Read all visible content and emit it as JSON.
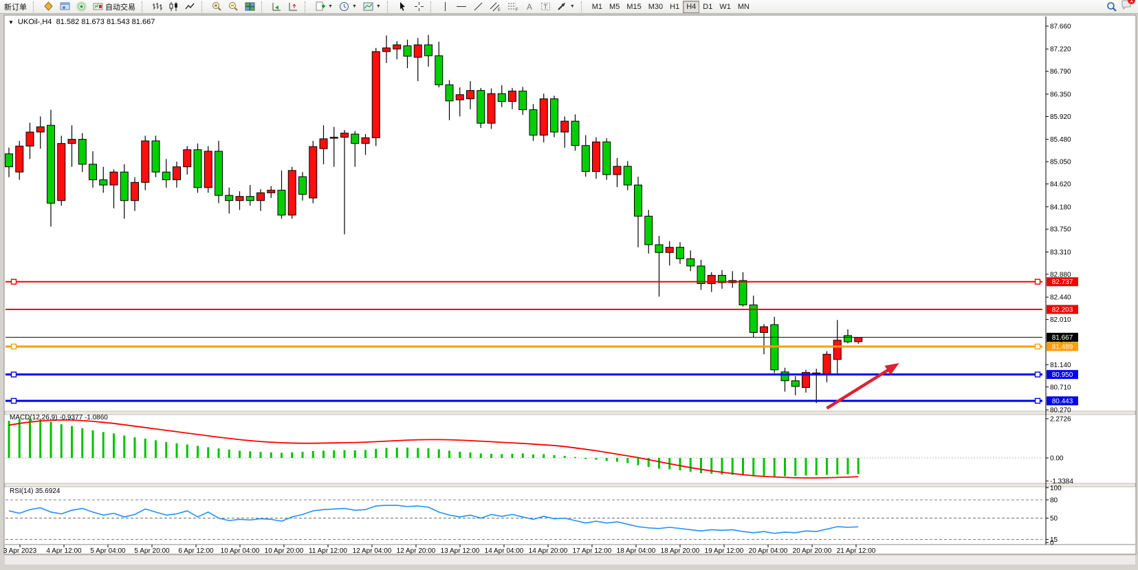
{
  "toolbar": {
    "new_order_label": "新订单",
    "autotrade_label": "自动交易",
    "timeframes": [
      "M1",
      "M5",
      "M15",
      "M30",
      "H1",
      "H4",
      "D1",
      "W1",
      "MN"
    ],
    "active_timeframe": "H4",
    "notification_count": "1"
  },
  "window": {
    "collapse_arrow": "▼",
    "title_symbol": "UKOil-,H4",
    "title_ohlc": "81.582 81.673 81.543 81.667"
  },
  "chart_data": {
    "type": "candlestick",
    "symbol": "UKOil-",
    "timeframe": "H4",
    "current_bar": {
      "open": 81.582,
      "high": 81.673,
      "low": 81.543,
      "close": 81.667
    },
    "bull_color": "#ff0e0e",
    "bear_color": "#00cf00",
    "price_axis_ticks": [
      "87.660",
      "87.220",
      "86.790",
      "86.350",
      "85.920",
      "85.480",
      "85.050",
      "84.620",
      "84.180",
      "83.750",
      "83.310",
      "82.880",
      "82.440",
      "82.010",
      "81.570",
      "81.140",
      "80.710",
      "80.270"
    ],
    "time_labels": [
      "3 Apr 2023",
      "4 Apr 12:00",
      "5 Apr 04:00",
      "5 Apr 20:00",
      "6 Apr 12:00",
      "10 Apr 04:00",
      "10 Apr 20:00",
      "11 Apr 12:00",
      "12 Apr 04:00",
      "12 Apr 20:00",
      "13 Apr 12:00",
      "14 Apr 04:00",
      "14 Apr 20:00",
      "17 Apr 12:00",
      "18 Apr 04:00",
      "18 Apr 20:00",
      "19 Apr 12:00",
      "20 Apr 04:00",
      "20 Apr 20:00",
      "21 Apr 12:00"
    ],
    "candles": [
      [
        85.2,
        85.32,
        84.75,
        84.95
      ],
      [
        84.85,
        85.45,
        84.7,
        85.35
      ],
      [
        85.35,
        85.8,
        85.1,
        85.62
      ],
      [
        85.62,
        85.92,
        85.3,
        85.72
      ],
      [
        85.75,
        86.05,
        83.8,
        84.25
      ],
      [
        84.3,
        85.55,
        84.2,
        85.4
      ],
      [
        85.4,
        85.75,
        84.95,
        85.48
      ],
      [
        85.48,
        85.6,
        84.85,
        85.0
      ],
      [
        85.0,
        85.25,
        84.55,
        84.7
      ],
      [
        84.7,
        84.95,
        84.45,
        84.6
      ],
      [
        84.6,
        84.9,
        84.15,
        84.85
      ],
      [
        84.85,
        85.0,
        83.95,
        84.3
      ],
      [
        84.3,
        84.75,
        84.1,
        84.65
      ],
      [
        84.65,
        85.55,
        84.5,
        85.45
      ],
      [
        85.45,
        85.55,
        84.75,
        84.85
      ],
      [
        84.85,
        85.1,
        84.55,
        84.7
      ],
      [
        84.7,
        85.05,
        84.55,
        84.95
      ],
      [
        84.95,
        85.35,
        84.8,
        85.28
      ],
      [
        85.28,
        85.4,
        84.45,
        84.55
      ],
      [
        84.55,
        85.35,
        84.45,
        85.25
      ],
      [
        85.25,
        85.45,
        84.25,
        84.4
      ],
      [
        84.4,
        84.55,
        84.05,
        84.3
      ],
      [
        84.3,
        84.48,
        84.12,
        84.38
      ],
      [
        84.38,
        84.6,
        84.2,
        84.3
      ],
      [
        84.3,
        84.52,
        84.1,
        84.45
      ],
      [
        84.45,
        84.58,
        84.35,
        84.5
      ],
      [
        84.5,
        84.88,
        83.95,
        84.02
      ],
      [
        84.02,
        84.95,
        83.95,
        84.88
      ],
      [
        84.76,
        84.85,
        84.3,
        84.42
      ],
      [
        84.35,
        85.45,
        84.25,
        85.34
      ],
      [
        85.3,
        85.75,
        85.0,
        85.49
      ],
      [
        85.5,
        85.72,
        84.95,
        85.52
      ],
      [
        85.52,
        85.66,
        83.65,
        85.6
      ],
      [
        85.58,
        85.64,
        84.95,
        85.4
      ],
      [
        85.4,
        85.58,
        85.18,
        85.51
      ],
      [
        85.51,
        87.24,
        85.35,
        87.17
      ],
      [
        87.17,
        87.48,
        86.95,
        87.24
      ],
      [
        87.22,
        87.37,
        87.02,
        87.3
      ],
      [
        87.28,
        87.4,
        86.85,
        87.08
      ],
      [
        87.06,
        87.43,
        86.6,
        87.3
      ],
      [
        87.3,
        87.49,
        86.88,
        87.09
      ],
      [
        87.09,
        87.36,
        86.48,
        86.53
      ],
      [
        86.53,
        86.62,
        85.85,
        86.22
      ],
      [
        86.24,
        86.48,
        85.92,
        86.34
      ],
      [
        86.26,
        86.6,
        86.06,
        86.42
      ],
      [
        86.42,
        86.47,
        85.7,
        85.79
      ],
      [
        85.79,
        86.46,
        85.68,
        86.36
      ],
      [
        86.36,
        86.52,
        86.1,
        86.21
      ],
      [
        86.21,
        86.47,
        86.06,
        86.41
      ],
      [
        86.41,
        86.49,
        85.95,
        86.05
      ],
      [
        86.05,
        86.16,
        85.45,
        85.56
      ],
      [
        85.56,
        86.36,
        85.42,
        86.26
      ],
      [
        86.26,
        86.32,
        85.52,
        85.62
      ],
      [
        85.62,
        85.92,
        85.32,
        85.83
      ],
      [
        85.83,
        85.96,
        85.26,
        85.36
      ],
      [
        85.36,
        85.56,
        84.76,
        84.86
      ],
      [
        84.86,
        85.52,
        84.72,
        85.43
      ],
      [
        85.43,
        85.5,
        84.7,
        84.8
      ],
      [
        84.8,
        85.12,
        84.56,
        84.96
      ],
      [
        84.96,
        85.06,
        84.5,
        84.6
      ],
      [
        84.6,
        84.76,
        83.4,
        84.0
      ],
      [
        84.0,
        84.12,
        83.28,
        83.45
      ],
      [
        83.45,
        83.62,
        82.45,
        83.3
      ],
      [
        83.3,
        83.52,
        83.05,
        83.4
      ],
      [
        83.4,
        83.5,
        83.08,
        83.18
      ],
      [
        83.18,
        83.34,
        82.94,
        83.04
      ],
      [
        83.04,
        83.16,
        82.58,
        82.7
      ],
      [
        82.7,
        82.92,
        82.54,
        82.86
      ],
      [
        82.86,
        82.96,
        82.6,
        82.72
      ],
      [
        82.72,
        82.94,
        82.62,
        82.76
      ],
      [
        82.76,
        82.92,
        82.26,
        82.29
      ],
      [
        82.29,
        82.47,
        81.67,
        81.76
      ],
      [
        81.76,
        81.92,
        81.34,
        81.87
      ],
      [
        81.91,
        82.06,
        80.98,
        81.04
      ],
      [
        81.0,
        81.08,
        80.62,
        80.83
      ],
      [
        80.83,
        80.92,
        80.55,
        80.72
      ],
      [
        80.7,
        81.04,
        80.6,
        80.99
      ],
      [
        80.98,
        81.06,
        80.4,
        80.97
      ],
      [
        80.94,
        81.4,
        80.8,
        81.34
      ],
      [
        81.24,
        82.0,
        80.97,
        81.61
      ],
      [
        81.7,
        81.82,
        81.55,
        81.58
      ],
      [
        81.582,
        81.673,
        81.543,
        81.667
      ]
    ],
    "hlines": [
      {
        "value": 82.737,
        "label": "82.737",
        "color": "#f20000",
        "width": 2,
        "handles": true
      },
      {
        "value": 82.203,
        "label": "82.203",
        "color": "#f20000",
        "width": 2,
        "handles": false
      },
      {
        "value": 81.489,
        "label": "81.489",
        "color": "#ff9d00",
        "width": 3,
        "handles": true
      },
      {
        "value": 80.95,
        "label": "80.950",
        "color": "#0000f0",
        "width": 3,
        "handles": true
      },
      {
        "value": 80.443,
        "label": "80.443",
        "color": "#0000f0",
        "width": 3,
        "handles": true
      }
    ],
    "bid": {
      "value": 81.667,
      "label": "81.667",
      "color": "#000000"
    },
    "arrow": {
      "from_bar": 78.0,
      "from_price": 80.3,
      "to_bar": 84.9,
      "to_price": 81.17,
      "color": "#dd2233"
    },
    "macd": {
      "label": "MACD(12,26,9) -0.9377 -1.0860",
      "main_value": -0.9377,
      "signal_value": -1.086,
      "hist_color": "#00c400",
      "signal_color": "#ff0000",
      "axis_labels": [
        "2.2726",
        "0.00",
        "-1.3384"
      ],
      "hist": [
        2.15,
        2.24,
        2.27,
        2.22,
        2.1,
        1.95,
        1.85,
        1.72,
        1.6,
        1.5,
        1.42,
        1.3,
        1.2,
        1.12,
        1.02,
        0.92,
        0.85,
        0.78,
        0.7,
        0.62,
        0.55,
        0.48,
        0.42,
        0.38,
        0.35,
        0.32,
        0.3,
        0.32,
        0.35,
        0.4,
        0.42,
        0.44,
        0.45,
        0.44,
        0.46,
        0.52,
        0.58,
        0.6,
        0.6,
        0.58,
        0.56,
        0.5,
        0.42,
        0.36,
        0.32,
        0.26,
        0.24,
        0.22,
        0.24,
        0.26,
        0.2,
        0.22,
        0.16,
        0.12,
        0.05,
        -0.06,
        -0.1,
        -0.18,
        -0.22,
        -0.3,
        -0.42,
        -0.52,
        -0.62,
        -0.66,
        -0.72,
        -0.8,
        -0.88,
        -0.92,
        -0.96,
        -0.98,
        -1.02,
        -1.06,
        -1.05,
        -1.08,
        -1.06,
        -1.05,
        -1.02,
        -1.0,
        -0.98,
        -0.96,
        -0.95,
        -0.94
      ],
      "signal": [
        1.9,
        2.0,
        2.08,
        2.14,
        2.18,
        2.2,
        2.19,
        2.16,
        2.12,
        2.06,
        2.0,
        1.92,
        1.84,
        1.76,
        1.68,
        1.6,
        1.52,
        1.44,
        1.36,
        1.28,
        1.2,
        1.13,
        1.06,
        1.0,
        0.95,
        0.91,
        0.88,
        0.86,
        0.85,
        0.85,
        0.86,
        0.87,
        0.88,
        0.89,
        0.91,
        0.94,
        0.97,
        1.0,
        1.03,
        1.05,
        1.06,
        1.06,
        1.05,
        1.03,
        1.0,
        0.97,
        0.94,
        0.9,
        0.87,
        0.84,
        0.8,
        0.76,
        0.72,
        0.66,
        0.58,
        0.5,
        0.42,
        0.32,
        0.22,
        0.12,
        0.02,
        -0.1,
        -0.22,
        -0.34,
        -0.45,
        -0.56,
        -0.66,
        -0.75,
        -0.83,
        -0.9,
        -0.97,
        -1.03,
        -1.07,
        -1.1,
        -1.13,
        -1.15,
        -1.16,
        -1.16,
        -1.15,
        -1.13,
        -1.11,
        -1.086
      ]
    },
    "rsi": {
      "label": "RSI(14) 35.6924",
      "value": 35.6924,
      "color": "#1e90ff",
      "levels": [
        80,
        50,
        15
      ],
      "axis_labels": [
        "100",
        "80",
        "50",
        "15",
        "0"
      ],
      "values": [
        62,
        58,
        64,
        67,
        60,
        57,
        63,
        66,
        60,
        55,
        58,
        52,
        56,
        65,
        60,
        55,
        57,
        62,
        52,
        60,
        50,
        46,
        48,
        47,
        49,
        48,
        45,
        52,
        56,
        62,
        64,
        65,
        66,
        63,
        64,
        70,
        71,
        71,
        69,
        70,
        68,
        60,
        55,
        52,
        55,
        50,
        56,
        53,
        56,
        52,
        48,
        53,
        49,
        50,
        46,
        42,
        45,
        42,
        44,
        40,
        36,
        34,
        33,
        35,
        33,
        31,
        29,
        31,
        30,
        31,
        28,
        26,
        28,
        25,
        27,
        26,
        29,
        28,
        32,
        36,
        35,
        35.69
      ]
    }
  }
}
